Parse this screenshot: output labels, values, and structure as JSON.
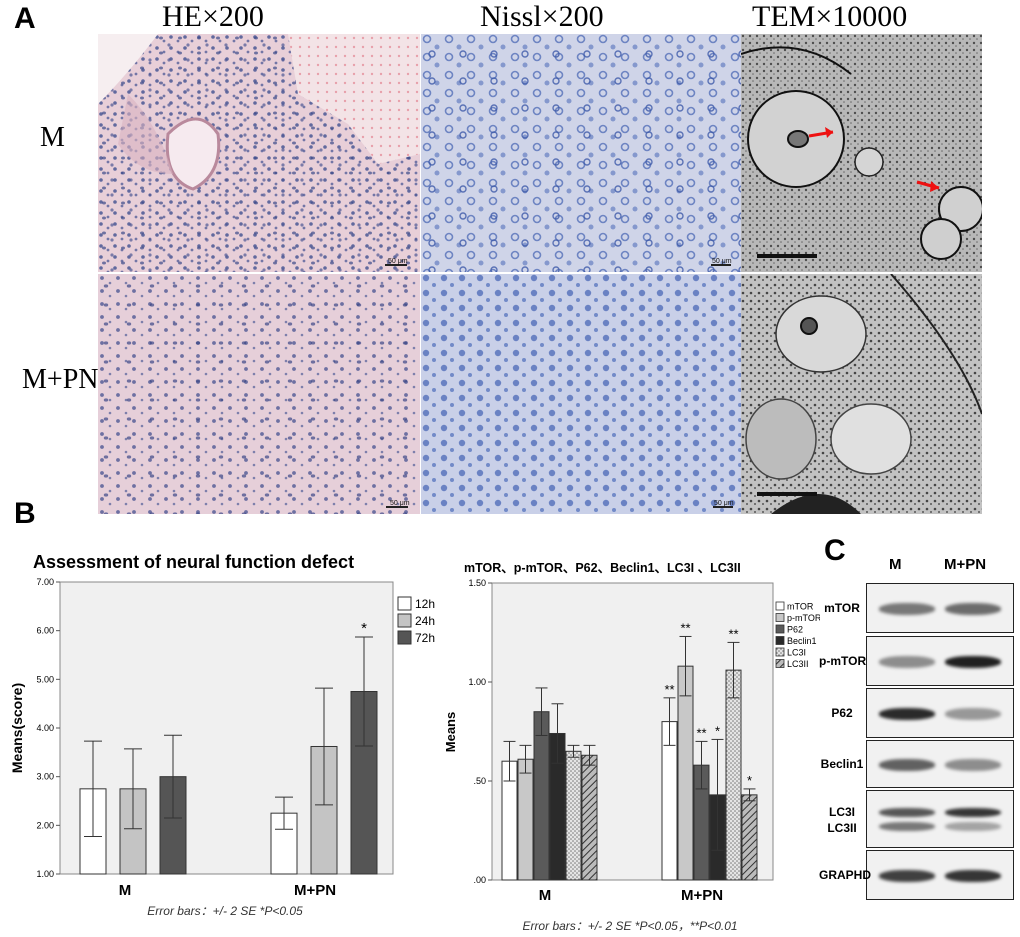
{
  "panelA": {
    "letter": "A",
    "columns": [
      "HE×200",
      "Nissl×200",
      "TEM×10000"
    ],
    "rows": [
      "M",
      "M+PN"
    ],
    "scale_label": "50 μm"
  },
  "panelB": {
    "letter": "B",
    "chart1": {
      "title": "Assessment of neural function defect",
      "ylabel": "Means(score)",
      "yticks": [
        "1.00",
        "2.00",
        "3.00",
        "4.00",
        "5.00",
        "6.00",
        "7.00"
      ],
      "footnote": "Error bars：+/- 2 SE   *P<0.05",
      "significance": "*"
    },
    "chart2": {
      "title": "mTOR、p-mTOR、P62、Beclin1、LC3I 、LC3II",
      "ylabel": "Means",
      "yticks": [
        ".00",
        ".50",
        "1.00",
        "1.50"
      ],
      "footnote": "Error bars：+/- 2 SE   *P<0.05，**P<0.01",
      "significance": [
        "**",
        "**",
        "**",
        "*",
        "**",
        "*"
      ]
    }
  },
  "panelC": {
    "letter": "C",
    "lanes": [
      "M",
      "M+PN"
    ],
    "proteins": [
      "mTOR",
      "p-mTOR",
      "P62",
      "Beclin1",
      "LC3I\nLC3II",
      "GRAPHD"
    ]
  },
  "chart_data": [
    {
      "type": "bar",
      "title": "Assessment of neural function defect",
      "ylabel": "Means(score)",
      "xlabel": "",
      "categories": [
        "M",
        "M+PN"
      ],
      "ylim": [
        1,
        7
      ],
      "series": [
        {
          "name": "12h",
          "values": [
            2.75,
            2.25
          ],
          "error": [
            0.98,
            0.33
          ],
          "color": "#ffffff"
        },
        {
          "name": "24h",
          "values": [
            2.75,
            3.62
          ],
          "error": [
            0.82,
            1.2
          ],
          "color": "#c4c4c4"
        },
        {
          "name": "72h",
          "values": [
            3.0,
            4.75
          ],
          "error": [
            0.85,
            1.12
          ],
          "color": "#555555"
        }
      ],
      "significance": [
        "",
        "",
        "",
        "",
        "",
        "*"
      ],
      "legend": "right",
      "grid": false
    },
    {
      "type": "bar",
      "title": "mTOR、p-mTOR、P62、Beclin1、LC3I 、LC3II",
      "ylabel": "Means",
      "xlabel": "",
      "categories": [
        "M",
        "M+PN"
      ],
      "ylim": [
        0,
        1.5
      ],
      "series": [
        {
          "name": "mTOR",
          "values": [
            0.6,
            0.8
          ],
          "error": [
            0.1,
            0.12
          ],
          "color": "#ffffff",
          "pattern": "none"
        },
        {
          "name": "p-mTOR",
          "values": [
            0.61,
            1.08
          ],
          "error": [
            0.07,
            0.15
          ],
          "color": "#c8c8c8",
          "pattern": "none"
        },
        {
          "name": "P62",
          "values": [
            0.85,
            0.58
          ],
          "error": [
            0.12,
            0.12
          ],
          "color": "#5a5a5a",
          "pattern": "none"
        },
        {
          "name": "Beclin1",
          "values": [
            0.74,
            0.43
          ],
          "error": [
            0.15,
            0.28
          ],
          "color": "#2a2a2a",
          "pattern": "none"
        },
        {
          "name": "LC3I",
          "values": [
            0.65,
            1.06
          ],
          "error": [
            0.03,
            0.14
          ],
          "color": "#d8d8d8",
          "pattern": "dots"
        },
        {
          "name": "LC3II",
          "values": [
            0.63,
            0.43
          ],
          "error": [
            0.05,
            0.03
          ],
          "color": "#888888",
          "pattern": "hatch"
        }
      ],
      "significance": [
        "",
        "",
        "",
        "",
        "",
        "",
        "**",
        "**",
        "**",
        "*",
        "**",
        "*"
      ],
      "legend": "right",
      "grid": false
    }
  ]
}
